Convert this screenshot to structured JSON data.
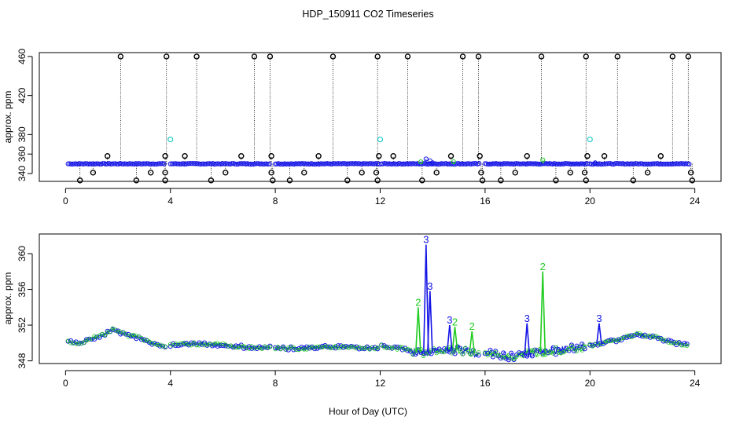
{
  "chart_data": {
    "type": "scatter",
    "title": "HDP_150911  CO2 Timeseries",
    "xlabel": "Hour of Day (UTC)",
    "xlim": [
      -1,
      25
    ],
    "xticks": [
      0,
      4,
      8,
      12,
      16,
      20,
      24
    ],
    "colors": {
      "black": "#000000",
      "blue": "#1414e6",
      "green": "#22cc22",
      "cyan": "#22cccc"
    },
    "panels": [
      {
        "id": "top",
        "ylabel": "approx. ppm",
        "ylim": [
          332,
          464
        ],
        "yticks": [
          340,
          380,
          420,
          460
        ],
        "extra_yticks": [
          360
        ],
        "baseline": {
          "segments": [
            [
              0.1,
              3.8
            ],
            [
              4.0,
              7.8
            ],
            [
              8.0,
              12.0
            ],
            [
              12.05,
              15.8
            ],
            [
              16.0,
              19.9
            ],
            [
              20.0,
              23.8
            ]
          ],
          "level": 350,
          "color": "blue"
        },
        "spikes": [
          {
            "x": 2.1,
            "y": 460
          },
          {
            "x": 3.85,
            "y": 460
          },
          {
            "x": 5.0,
            "y": 460
          },
          {
            "x": 7.2,
            "y": 460
          },
          {
            "x": 7.8,
            "y": 460
          },
          {
            "x": 10.2,
            "y": 460
          },
          {
            "x": 11.9,
            "y": 460
          },
          {
            "x": 13.05,
            "y": 460
          },
          {
            "x": 15.15,
            "y": 460
          },
          {
            "x": 15.75,
            "y": 460
          },
          {
            "x": 18.15,
            "y": 460
          },
          {
            "x": 19.85,
            "y": 460
          },
          {
            "x": 21.05,
            "y": 460
          },
          {
            "x": 23.15,
            "y": 460
          },
          {
            "x": 23.75,
            "y": 460
          },
          {
            "x": 1.6,
            "y": 358
          },
          {
            "x": 3.8,
            "y": 358
          },
          {
            "x": 4.55,
            "y": 358
          },
          {
            "x": 6.7,
            "y": 358
          },
          {
            "x": 7.85,
            "y": 358
          },
          {
            "x": 9.65,
            "y": 358
          },
          {
            "x": 11.95,
            "y": 358
          },
          {
            "x": 12.5,
            "y": 358
          },
          {
            "x": 14.7,
            "y": 358
          },
          {
            "x": 15.8,
            "y": 358
          },
          {
            "x": 17.6,
            "y": 358
          },
          {
            "x": 19.9,
            "y": 358
          },
          {
            "x": 20.55,
            "y": 358
          },
          {
            "x": 22.7,
            "y": 358
          },
          {
            "x": 0.55,
            "y": 333
          },
          {
            "x": 1.05,
            "y": 341
          },
          {
            "x": 2.7,
            "y": 333
          },
          {
            "x": 3.25,
            "y": 341
          },
          {
            "x": 3.8,
            "y": 341
          },
          {
            "x": 3.8,
            "y": 333
          },
          {
            "x": 5.55,
            "y": 333
          },
          {
            "x": 6.1,
            "y": 341
          },
          {
            "x": 7.85,
            "y": 341
          },
          {
            "x": 7.9,
            "y": 333
          },
          {
            "x": 8.55,
            "y": 333
          },
          {
            "x": 9.1,
            "y": 341
          },
          {
            "x": 10.75,
            "y": 333
          },
          {
            "x": 11.3,
            "y": 341
          },
          {
            "x": 11.85,
            "y": 341
          },
          {
            "x": 11.9,
            "y": 333
          },
          {
            "x": 13.6,
            "y": 333
          },
          {
            "x": 14.15,
            "y": 341
          },
          {
            "x": 15.85,
            "y": 341
          },
          {
            "x": 15.9,
            "y": 333
          },
          {
            "x": 16.6,
            "y": 333
          },
          {
            "x": 17.15,
            "y": 341
          },
          {
            "x": 18.7,
            "y": 333
          },
          {
            "x": 19.25,
            "y": 341
          },
          {
            "x": 19.8,
            "y": 341
          },
          {
            "x": 19.85,
            "y": 333
          },
          {
            "x": 21.65,
            "y": 333
          },
          {
            "x": 22.2,
            "y": 341
          },
          {
            "x": 23.85,
            "y": 341
          },
          {
            "x": 23.9,
            "y": 333
          }
        ],
        "bumps": [
          {
            "x": 13.75,
            "y": 355,
            "color": "blue"
          },
          {
            "x": 13.9,
            "y": 353,
            "color": "blue"
          },
          {
            "x": 14.0,
            "y": 351,
            "color": "blue"
          },
          {
            "x": 13.55,
            "y": 352,
            "color": "green"
          },
          {
            "x": 14.8,
            "y": 352,
            "color": "green"
          },
          {
            "x": 18.2,
            "y": 354,
            "color": "green"
          },
          {
            "x": 20.2,
            "y": 351,
            "color": "blue"
          }
        ],
        "cyan_points": [
          {
            "x": 4.0,
            "y": 375
          },
          {
            "x": 12.0,
            "y": 375
          },
          {
            "x": 20.0,
            "y": 375
          }
        ]
      },
      {
        "id": "bottom",
        "ylabel": "approx. ppm",
        "ylim": [
          347.7,
          362.2
        ],
        "yticks": [
          348,
          352,
          356,
          360
        ],
        "segments": [
          [
            0.1,
            3.8
          ],
          [
            4.0,
            7.8
          ],
          [
            8.0,
            12.0
          ],
          [
            12.05,
            15.8
          ],
          [
            16.0,
            19.9
          ],
          [
            20.0,
            23.8
          ]
        ],
        "baseline_profile": [
          [
            0,
            350.2
          ],
          [
            0.5,
            350.0
          ],
          [
            1.0,
            350.5
          ],
          [
            1.5,
            351.0
          ],
          [
            1.8,
            351.5
          ],
          [
            2.2,
            351.0
          ],
          [
            2.8,
            350.6
          ],
          [
            3.3,
            350.0
          ],
          [
            3.8,
            349.6
          ],
          [
            4.0,
            349.8
          ],
          [
            5.0,
            349.9
          ],
          [
            6.0,
            349.8
          ],
          [
            7.0,
            349.5
          ],
          [
            7.8,
            349.5
          ],
          [
            8.0,
            349.4
          ],
          [
            9.0,
            349.4
          ],
          [
            10.0,
            349.6
          ],
          [
            11.0,
            349.5
          ],
          [
            12.0,
            349.3
          ],
          [
            12.05,
            349.6
          ],
          [
            12.8,
            349.4
          ],
          [
            13.4,
            349.0
          ],
          [
            14.0,
            349.0
          ],
          [
            15.0,
            349.3
          ],
          [
            15.8,
            348.7
          ],
          [
            16.0,
            348.8
          ],
          [
            17.0,
            348.5
          ],
          [
            18.0,
            348.9
          ],
          [
            19.0,
            349.3
          ],
          [
            19.9,
            349.6
          ],
          [
            20.0,
            349.7
          ],
          [
            21.0,
            350.3
          ],
          [
            21.8,
            351.0
          ],
          [
            22.5,
            350.6
          ],
          [
            23.2,
            350.0
          ],
          [
            23.8,
            349.8
          ]
        ],
        "blue_spikes": [
          {
            "x": 13.75,
            "y": 361.0,
            "label": "3"
          },
          {
            "x": 13.9,
            "y": 355.8,
            "label": "3"
          },
          {
            "x": 17.6,
            "y": 352.2,
            "label": "3"
          },
          {
            "x": 20.35,
            "y": 352.2,
            "label": "3"
          },
          {
            "x": 14.65,
            "y": 352.0,
            "label": "3"
          }
        ],
        "green_spikes": [
          {
            "x": 13.45,
            "y": 354.0,
            "label": "2"
          },
          {
            "x": 18.2,
            "y": 358.0,
            "label": "2"
          },
          {
            "x": 14.85,
            "y": 351.8,
            "label": "2"
          },
          {
            "x": 15.5,
            "y": 351.3,
            "label": "2"
          }
        ]
      }
    ]
  }
}
